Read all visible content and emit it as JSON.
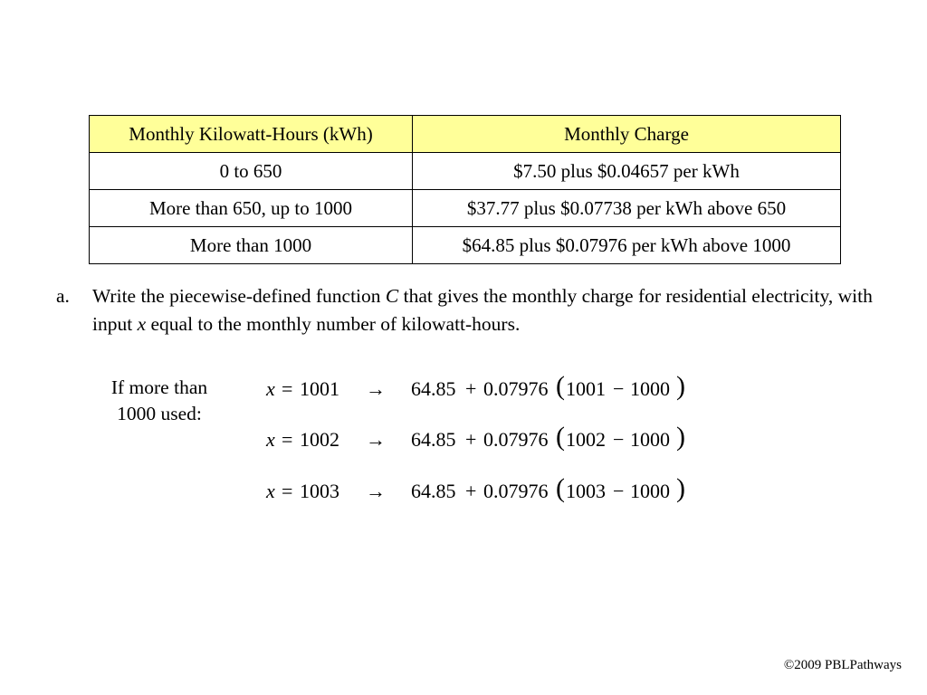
{
  "table": {
    "headers": [
      "Monthly Kilowatt-Hours (kWh)",
      "Monthly Charge"
    ],
    "rows": [
      [
        "0 to 650",
        "$7.50 plus $0.04657 per kWh"
      ],
      [
        "More than 650, up to 1000",
        "$37.77 plus $0.07738 per kWh above 650"
      ],
      [
        "More than 1000",
        "$64.85 plus $0.07976 per kWh above 1000"
      ]
    ],
    "header_color": "#ffff99"
  },
  "question": {
    "marker": "a.",
    "text_1": "Write the piecewise-defined function ",
    "func_var": "C",
    "text_2": " that gives the monthly charge for residential electricity, with input ",
    "input_var": "x",
    "text_3": " equal to the monthly number of kilowatt-hours."
  },
  "note": {
    "line1": "If more than",
    "line2": "1000 used:"
  },
  "equations": [
    {
      "var": "x",
      "eq": "=",
      "x_value": "1001",
      "arrow": "→",
      "base": "64.85",
      "plus": "+",
      "rate": "0.07976",
      "lparen": "(",
      "inner1": "1001",
      "minus": "−",
      "inner2": "1000",
      "rparen": ")"
    },
    {
      "var": "x",
      "eq": "=",
      "x_value": "1002",
      "arrow": "→",
      "base": "64.85",
      "plus": "+",
      "rate": "0.07976",
      "lparen": "(",
      "inner1": "1002",
      "minus": "−",
      "inner2": "1000",
      "rparen": ")"
    },
    {
      "var": "x",
      "eq": "=",
      "x_value": "1003",
      "arrow": "→",
      "base": "64.85",
      "plus": "+",
      "rate": "0.07976",
      "lparen": "(",
      "inner1": "1003",
      "minus": "−",
      "inner2": "1000",
      "rparen": ")"
    }
  ],
  "footer": "©2009 PBLPathways"
}
